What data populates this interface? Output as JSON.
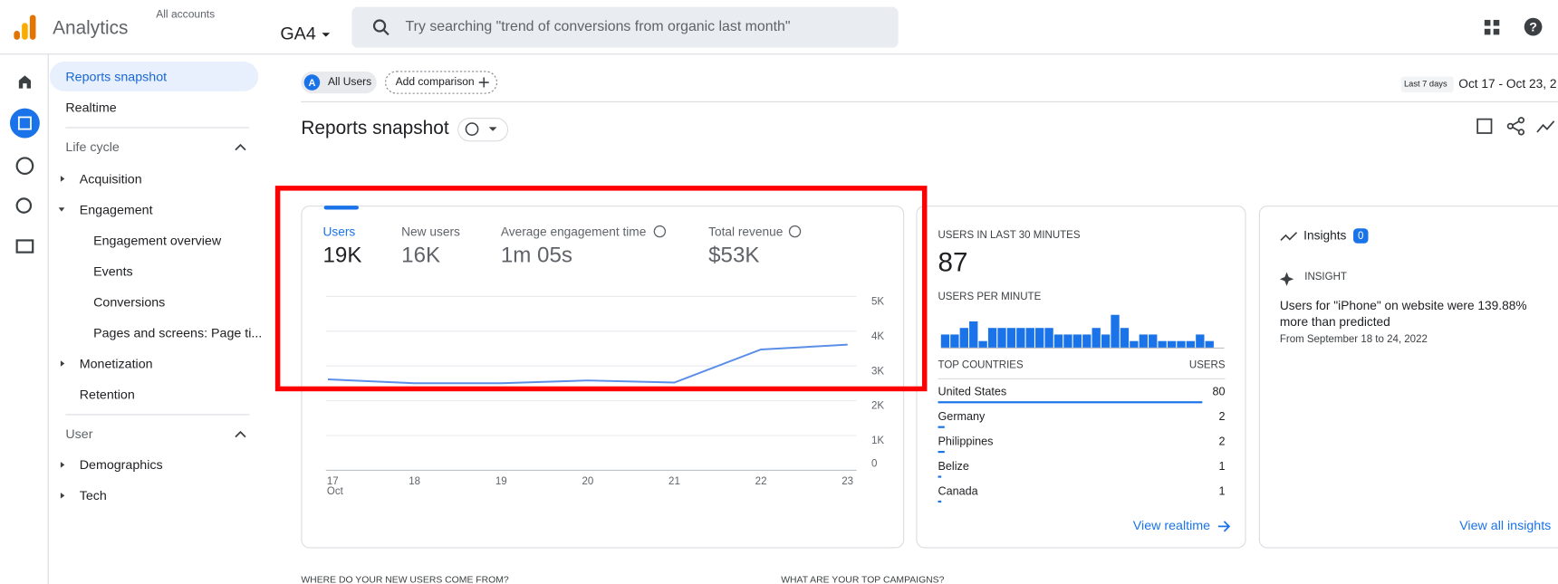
{
  "header": {
    "app": "Analytics",
    "accounts": "All accounts",
    "property": "GA4",
    "search_placeholder": "Try searching \"trend of conversions from organic last month\""
  },
  "nav": [
    "Reports snapshot",
    "Realtime",
    "Life cycle",
    "Acquisition",
    "Engagement",
    "Engagement overview",
    "Events",
    "Conversions",
    "Pages and screens: Page ti...",
    "Monetization",
    "Retention",
    "User",
    "Demographics",
    "Tech"
  ],
  "toolbar": {
    "segment_badge": "A",
    "segment": "All Users",
    "add_comparison": "Add comparison",
    "range_label": "Last 7 days",
    "range": "Oct 17 - Oct 23, 2"
  },
  "page_title": "Reports snapshot",
  "metrics": [
    {
      "label": "Users",
      "value": "19K"
    },
    {
      "label": "New users",
      "value": "16K"
    },
    {
      "label": "Average engagement time",
      "value": "1m 05s"
    },
    {
      "label": "Total revenue",
      "value": "$53K"
    }
  ],
  "realtime": {
    "title": "USERS IN LAST 30 MINUTES",
    "value": "87",
    "subtitle": "USERS PER MINUTE",
    "countries_header": "TOP COUNTRIES",
    "users_header": "USERS",
    "link": "View realtime"
  },
  "insights": {
    "title": "Insights",
    "count": 0,
    "tag": "INSIGHT",
    "text": "Users for \"iPhone\" on website were 139.88% more than predicted",
    "date": "From September 18 to 24, 2022",
    "link": "View all insights"
  },
  "sections": [
    "WHERE DO YOUR NEW USERS COME FROM?",
    "WHAT ARE YOUR TOP CAMPAIGNS?"
  ],
  "chart_data": [
    {
      "type": "line",
      "categories": [
        "17",
        "18",
        "19",
        "20",
        "21",
        "22",
        "23"
      ],
      "x_month": "Oct",
      "values": [
        2600,
        2490,
        2490,
        2570,
        2510,
        3460,
        3600
      ],
      "color": "#5b8ee6",
      "ylim": [
        0,
        5000
      ],
      "yticks": [
        0,
        {
          "value": 1000,
          "label": "1K"
        },
        {
          "value": 2000,
          "label": "2K"
        },
        {
          "value": 3000,
          "label": "3K"
        },
        {
          "value": 4000,
          "label": "4K"
        },
        {
          "value": 5000,
          "label": "5K"
        }
      ],
      "grid": true
    },
    {
      "type": "bar",
      "values": [
        2,
        2,
        3,
        4,
        1,
        3,
        3,
        3,
        3,
        3,
        3,
        3,
        2,
        2,
        2,
        2,
        3,
        2,
        5,
        3,
        1,
        2,
        2,
        1,
        1,
        1,
        1,
        2,
        1,
        0
      ],
      "color": "#1a73e8"
    },
    {
      "type": "hbar",
      "categories": [
        "United States",
        "Germany",
        "Philippines",
        "Belize",
        "Canada"
      ],
      "values": [
        80,
        2,
        2,
        1,
        1
      ],
      "color": "#1a73e8"
    }
  ]
}
